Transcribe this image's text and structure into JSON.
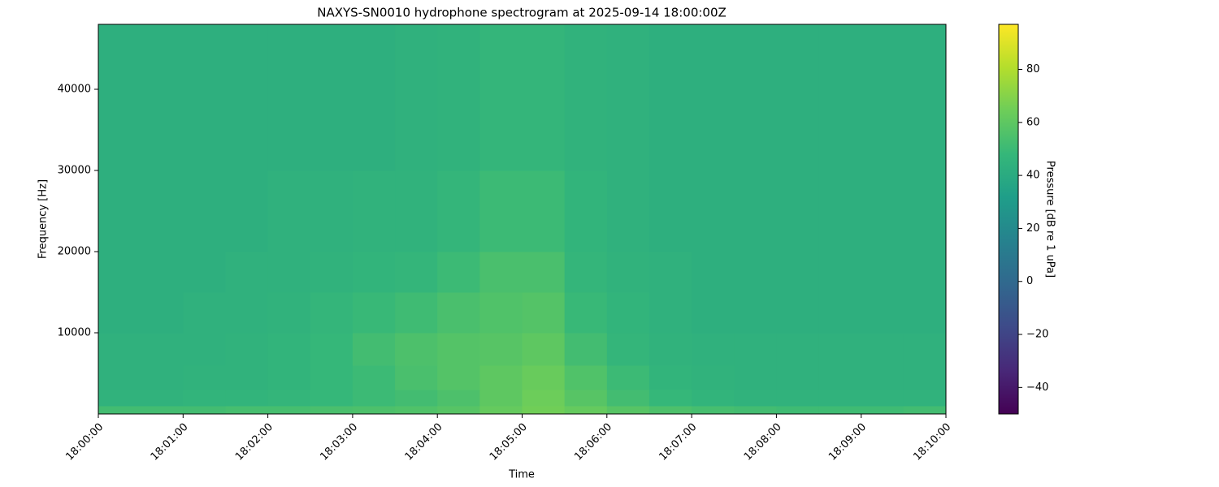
{
  "chart_data": {
    "type": "spectrogram",
    "title": "NAXYS-SN0010 hydrophone spectrogram at 2025-09-14 18:00:00Z",
    "x_label": "Time",
    "y_label": "Frequency [Hz]",
    "colorbar_label": "Pressure [dB re 1 uPa]",
    "colormap": "viridis",
    "xlim": [
      "18:00:00",
      "18:10:00"
    ],
    "xticks": [
      "18:00:00",
      "18:01:00",
      "18:02:00",
      "18:03:00",
      "18:04:00",
      "18:05:00",
      "18:06:00",
      "18:07:00",
      "18:08:00",
      "18:09:00",
      "18:10:00"
    ],
    "ylim": [
      0,
      48000
    ],
    "yticks": [
      10000,
      20000,
      30000,
      40000
    ],
    "clim": [
      -50,
      97
    ],
    "cticks": [
      {
        "value": -40,
        "label": "−40"
      },
      {
        "value": -20,
        "label": "−20"
      },
      0,
      20,
      40,
      60,
      80
    ],
    "time_bins": [
      "18:00:00",
      "18:00:30",
      "18:01:00",
      "18:01:30",
      "18:02:00",
      "18:02:30",
      "18:03:00",
      "18:03:30",
      "18:04:00",
      "18:04:30",
      "18:05:00",
      "18:05:30",
      "18:06:00",
      "18:06:30",
      "18:07:00",
      "18:07:30",
      "18:08:00",
      "18:08:30",
      "18:09:00",
      "18:09:30",
      "18:10:00"
    ],
    "freq_bins": [
      0,
      1000,
      3000,
      6000,
      10000,
      15000,
      20000,
      30000,
      48000
    ],
    "values": [
      [
        52,
        52,
        52,
        53,
        53,
        54,
        55,
        56,
        58,
        62,
        65,
        62,
        58,
        55,
        53,
        52,
        51,
        51,
        51,
        52
      ],
      [
        45,
        45,
        46,
        46,
        47,
        48,
        50,
        52,
        55,
        60,
        64,
        58,
        52,
        48,
        46,
        45,
        45,
        45,
        45,
        45
      ],
      [
        44,
        44,
        45,
        45,
        46,
        48,
        50,
        54,
        57,
        60,
        63,
        56,
        50,
        46,
        45,
        44,
        44,
        44,
        44,
        44
      ],
      [
        44,
        44,
        44,
        45,
        46,
        48,
        52,
        55,
        57,
        58,
        60,
        52,
        47,
        45,
        44,
        44,
        44,
        44,
        44,
        44
      ],
      [
        43,
        43,
        44,
        44,
        45,
        47,
        49,
        51,
        54,
        56,
        57,
        49,
        46,
        44,
        43,
        43,
        43,
        43,
        43,
        43
      ],
      [
        43,
        43,
        43,
        44,
        44,
        45,
        46,
        47,
        50,
        54,
        54,
        47,
        45,
        44,
        43,
        43,
        43,
        43,
        43,
        43
      ],
      [
        43,
        43,
        43,
        43,
        44,
        44,
        45,
        45,
        47,
        50,
        50,
        46,
        44,
        43,
        43,
        43,
        43,
        43,
        43,
        43
      ],
      [
        43,
        43,
        43,
        43,
        43,
        43,
        43,
        44,
        45,
        47,
        47,
        45,
        44,
        43,
        43,
        43,
        43,
        43,
        43,
        43
      ]
    ]
  }
}
